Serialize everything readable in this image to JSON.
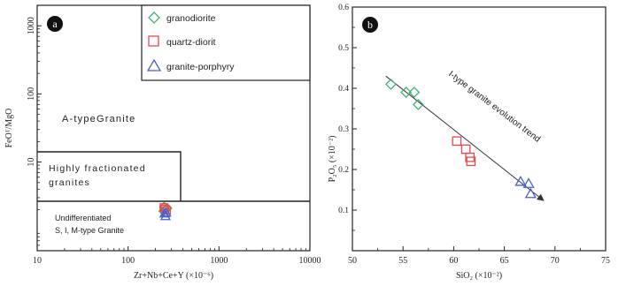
{
  "chart_data": [
    {
      "panel": "a",
      "type": "scatter",
      "xlabel": "Zr+Nb+Ce+Y (×10⁻⁶)",
      "ylabel": "FeOᵀ/MgO",
      "x_scale": "log",
      "y_scale": "log",
      "xlim": [
        10,
        10000
      ],
      "ylim": [
        0.5,
        2000
      ],
      "x_ticks": [
        "10",
        "100",
        "1000",
        "10000"
      ],
      "y_ticks": [
        "1000",
        "100",
        "10"
      ],
      "fields": [
        {
          "label": "A-typeGranite"
        },
        {
          "label": "Highly fractionated granites",
          "lines": [
            "Highly fractionated",
            "granites"
          ]
        },
        {
          "label": "Undifferentiated S, I, M-type Granite",
          "lines": [
            "Undifferentiated",
            "S, I, M-type Granite"
          ]
        }
      ],
      "series": [
        {
          "name": "granodiorite",
          "marker": "diamond",
          "color": "#3cb371",
          "points": [
            [
              250,
              2.2
            ],
            [
              260,
              2.0
            ],
            [
              270,
              2.1
            ],
            [
              245,
              1.9
            ]
          ]
        },
        {
          "name": "quartz-diorit",
          "marker": "square",
          "color": "#e8484d",
          "points": [
            [
              255,
              2.05
            ],
            [
              265,
              1.95
            ],
            [
              248,
              2.15
            ]
          ]
        },
        {
          "name": "granite-porphyry",
          "marker": "triangle",
          "color": "#4a5fd0",
          "points": [
            [
              252,
              1.75
            ],
            [
              262,
              1.8
            ],
            [
              258,
              1.6
            ]
          ]
        }
      ],
      "legend_position": "top-right"
    },
    {
      "panel": "b",
      "type": "scatter",
      "xlabel": "SiO₂ (×10⁻²)",
      "ylabel": "P₂O₅ (×10⁻²)",
      "xlim": [
        50,
        75
      ],
      "ylim": [
        0,
        0.6
      ],
      "x_ticks": [
        50,
        55,
        60,
        65,
        70,
        75
      ],
      "y_ticks": [
        0.1,
        0.2,
        0.3,
        0.4,
        0.5,
        0.6
      ],
      "annotation": "I-type granite evolution trend",
      "trend_line": [
        [
          53.3,
          0.43
        ],
        [
          68.8,
          0.125
        ]
      ],
      "series": [
        {
          "name": "granodiorite",
          "marker": "diamond",
          "color": "#3cb371",
          "points": [
            [
              53.8,
              0.41
            ],
            [
              55.3,
              0.39
            ],
            [
              56.1,
              0.39
            ],
            [
              56.5,
              0.36
            ]
          ]
        },
        {
          "name": "quartz-diorit",
          "marker": "square",
          "color": "#e8484d",
          "points": [
            [
              60.3,
              0.27
            ],
            [
              61.2,
              0.25
            ],
            [
              61.6,
              0.23
            ],
            [
              61.7,
              0.22
            ]
          ]
        },
        {
          "name": "granite-porphyry",
          "marker": "triangle",
          "color": "#4a5fd0",
          "points": [
            [
              66.6,
              0.17
            ],
            [
              67.4,
              0.165
            ],
            [
              67.6,
              0.14
            ]
          ]
        }
      ]
    }
  ]
}
